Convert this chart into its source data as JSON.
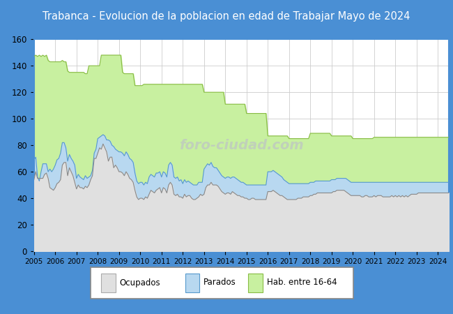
{
  "title": "Trabanca - Evolucion de la poblacion en edad de Trabajar Mayo de 2024",
  "title_bg": "#4a8fd4",
  "title_color": "white",
  "title_fontsize": 10.5,
  "ylim": [
    0,
    160
  ],
  "yticks": [
    0,
    20,
    40,
    60,
    80,
    100,
    120,
    140,
    160
  ],
  "years": [
    2005,
    2006,
    2007,
    2008,
    2009,
    2010,
    2011,
    2012,
    2013,
    2014,
    2015,
    2016,
    2017,
    2018,
    2019,
    2020,
    2021,
    2022,
    2023,
    2024
  ],
  "color_ocupados": "#e0e0e0",
  "color_parados": "#b8d8f0",
  "color_hab": "#c8f0a0",
  "line_ocupados": "#888888",
  "line_parados": "#5599cc",
  "line_hab": "#88bb44",
  "watermark": "foro-ciudad.com",
  "url": "http://www.foro-ciudad.com",
  "bg_color": "#4a8fd4",
  "hab_data": [
    147,
    148,
    147,
    148,
    147,
    148,
    147,
    148,
    144,
    143,
    143,
    143,
    143,
    143,
    143,
    143,
    144,
    143,
    143,
    136,
    135,
    135,
    135,
    135,
    135,
    135,
    135,
    135,
    135,
    134,
    134,
    140,
    140,
    140,
    140,
    140,
    140,
    140,
    148,
    148,
    148,
    148,
    148,
    148,
    148,
    148,
    148,
    148,
    148,
    148,
    135,
    134,
    134,
    134,
    134,
    134,
    134,
    125,
    125,
    125,
    125,
    125,
    126,
    126,
    126,
    126,
    126,
    126,
    126,
    126,
    126,
    126,
    126,
    126,
    126,
    126,
    126,
    126,
    126,
    126,
    126,
    126,
    126,
    126,
    126,
    126,
    126,
    126,
    126,
    126,
    126,
    126,
    126,
    126,
    126,
    126,
    120,
    120,
    120,
    120,
    120,
    120,
    120,
    120,
    120,
    120,
    120,
    120,
    111,
    111,
    111,
    111,
    111,
    111,
    111,
    111,
    111,
    111,
    111,
    111,
    104,
    104,
    104,
    104,
    104,
    104,
    104,
    104,
    104,
    104,
    104,
    104,
    87,
    87,
    87,
    87,
    87,
    87,
    87,
    87,
    87,
    87,
    87,
    87,
    85,
    85,
    85,
    85,
    85,
    85,
    85,
    85,
    85,
    85,
    85,
    85,
    89,
    89,
    89,
    89,
    89,
    89,
    89,
    89,
    89,
    89,
    89,
    89,
    87,
    87,
    87,
    87,
    87,
    87,
    87,
    87,
    87,
    87,
    87,
    87,
    85,
    85,
    85,
    85,
    85,
    85,
    85,
    85,
    85,
    85,
    85,
    85,
    86,
    86,
    86,
    86,
    86,
    86,
    86,
    86,
    86,
    86,
    86,
    86,
    86,
    86,
    86,
    86,
    86,
    86,
    86,
    86,
    86,
    86,
    86,
    86,
    86,
    86,
    86,
    86,
    86,
    86,
    86,
    86,
    86,
    86,
    86,
    86,
    86,
    86,
    86,
    86,
    86,
    86,
    86,
    86,
    86,
    86,
    86,
    86
  ],
  "parados_data": [
    69,
    71,
    56,
    53,
    60,
    66,
    66,
    66,
    60,
    62,
    60,
    62,
    65,
    69,
    70,
    74,
    82,
    82,
    78,
    68,
    73,
    70,
    68,
    65,
    55,
    58,
    56,
    55,
    54,
    57,
    55,
    56,
    57,
    61,
    74,
    77,
    85,
    86,
    87,
    88,
    87,
    84,
    84,
    83,
    80,
    79,
    77,
    76,
    75,
    75,
    74,
    72,
    75,
    73,
    70,
    69,
    67,
    59,
    53,
    51,
    52,
    52,
    50,
    52,
    51,
    56,
    58,
    57,
    56,
    59,
    59,
    60,
    56,
    60,
    59,
    56,
    65,
    67,
    65,
    56,
    55,
    56,
    53,
    54,
    51,
    54,
    52,
    53,
    52,
    51,
    50,
    50,
    50,
    52,
    52,
    52,
    62,
    64,
    66,
    65,
    67,
    64,
    63,
    63,
    61,
    59,
    57,
    56,
    55,
    56,
    56,
    55,
    56,
    56,
    55,
    54,
    53,
    52,
    52,
    51,
    50,
    50,
    50,
    50,
    50,
    50,
    50,
    50,
    50,
    50,
    50,
    50,
    60,
    60,
    60,
    61,
    60,
    59,
    58,
    57,
    56,
    54,
    53,
    52,
    51,
    51,
    51,
    51,
    51,
    51,
    51,
    51,
    51,
    51,
    51,
    51,
    52,
    52,
    52,
    53,
    53,
    53,
    53,
    53,
    53,
    53,
    53,
    53,
    54,
    54,
    54,
    55,
    55,
    55,
    55,
    55,
    55,
    54,
    53,
    52,
    52,
    52,
    52,
    52,
    52,
    52,
    52,
    52,
    52,
    52,
    52,
    52,
    52,
    52,
    52,
    52,
    52,
    52,
    52,
    52,
    52,
    52,
    52,
    52,
    52,
    52,
    52,
    52,
    52,
    52,
    52,
    52,
    52,
    52,
    52,
    52,
    52,
    52,
    52,
    52,
    52,
    52,
    52,
    52,
    52,
    52,
    52,
    52,
    52,
    52,
    52,
    52,
    52,
    52,
    52,
    52,
    52,
    52,
    52,
    52
  ],
  "ocupados_data": [
    54,
    60,
    55,
    55,
    55,
    55,
    58,
    59,
    55,
    48,
    47,
    46,
    48,
    51,
    52,
    54,
    65,
    67,
    67,
    57,
    63,
    60,
    57,
    52,
    47,
    50,
    48,
    48,
    47,
    49,
    48,
    50,
    54,
    57,
    70,
    70,
    74,
    78,
    77,
    81,
    78,
    75,
    68,
    71,
    71,
    63,
    65,
    63,
    60,
    60,
    59,
    57,
    60,
    58,
    55,
    54,
    52,
    46,
    41,
    39,
    40,
    40,
    39,
    41,
    40,
    43,
    46,
    45,
    44,
    46,
    47,
    48,
    44,
    48,
    47,
    44,
    50,
    52,
    50,
    43,
    42,
    43,
    41,
    41,
    40,
    43,
    41,
    42,
    42,
    40,
    39,
    39,
    40,
    41,
    43,
    42,
    43,
    48,
    50,
    50,
    52,
    50,
    50,
    50,
    49,
    47,
    45,
    44,
    43,
    44,
    44,
    43,
    45,
    44,
    43,
    42,
    42,
    41,
    41,
    40,
    40,
    39,
    39,
    40,
    40,
    39,
    39,
    39,
    39,
    39,
    39,
    39,
    45,
    45,
    45,
    46,
    45,
    44,
    43,
    42,
    42,
    41,
    40,
    39,
    39,
    39,
    39,
    39,
    39,
    40,
    40,
    40,
    41,
    41,
    41,
    41,
    42,
    42,
    43,
    43,
    44,
    44,
    44,
    44,
    44,
    44,
    44,
    44,
    44,
    45,
    45,
    46,
    46,
    46,
    46,
    46,
    45,
    44,
    43,
    42,
    42,
    42,
    42,
    42,
    42,
    41,
    41,
    42,
    42,
    41,
    41,
    41,
    42,
    41,
    42,
    42,
    42,
    41,
    41,
    41,
    41,
    41,
    42,
    41,
    42,
    41,
    42,
    41,
    42,
    41,
    42,
    41,
    42,
    43,
    43,
    43,
    43,
    44,
    44,
    44,
    44,
    44,
    44,
    44,
    44,
    44,
    44,
    44,
    44,
    44,
    44,
    44,
    44,
    44,
    44,
    44,
    44,
    44,
    44,
    44
  ]
}
